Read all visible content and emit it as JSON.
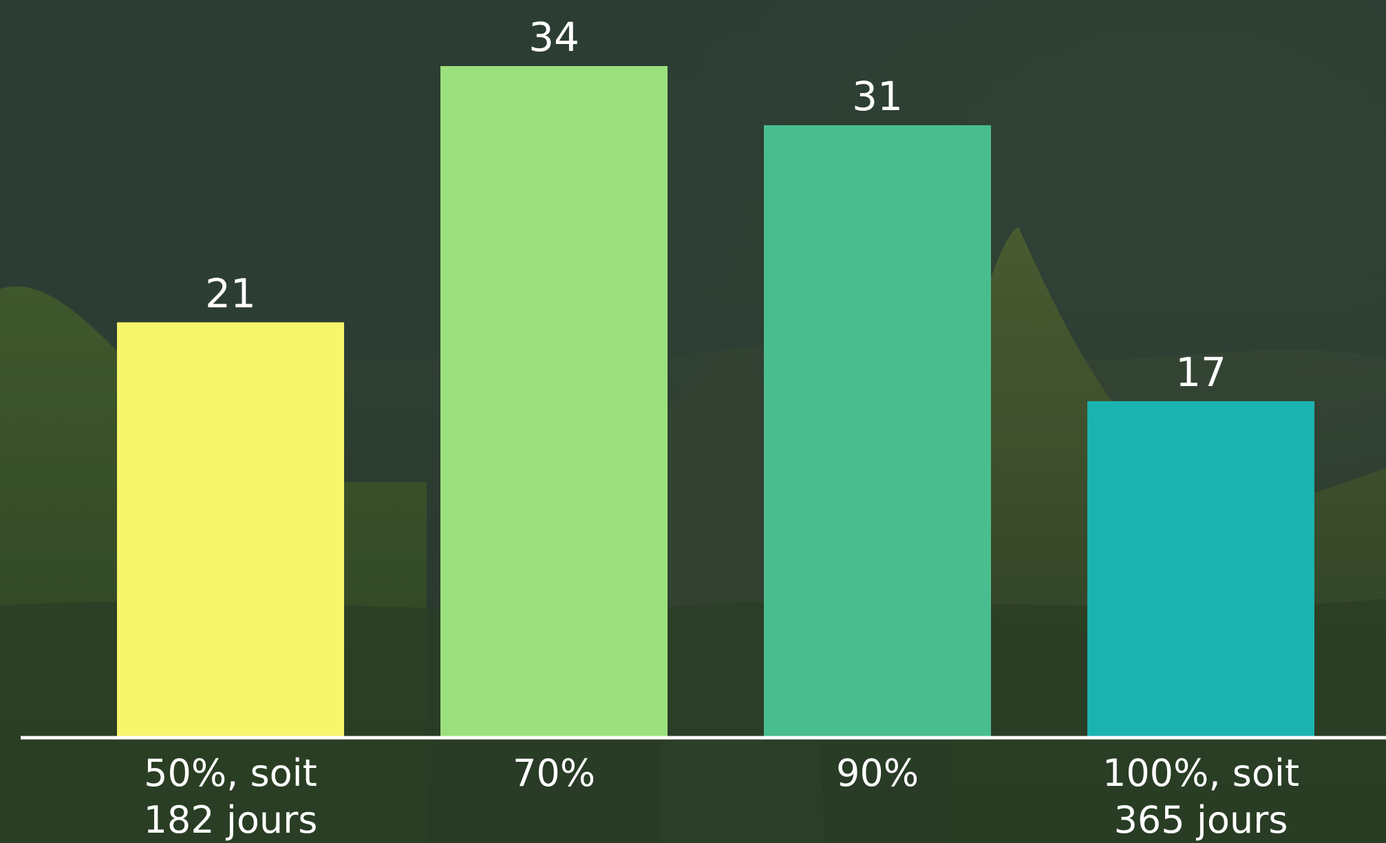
{
  "chart_data": {
    "type": "bar",
    "categories": [
      [
        "50%, soit",
        "182 jours"
      ],
      [
        "70%"
      ],
      [
        "90%"
      ],
      [
        "100%, soit",
        "365 jours"
      ]
    ],
    "values": [
      21,
      34,
      31,
      17
    ],
    "colors": [
      "#f7f56c",
      "#9ce07e",
      "#4abd8e",
      "#1bb3af"
    ],
    "ylim": [
      0,
      34
    ],
    "grid": false,
    "legend": "none",
    "axis_color": "#ffffff",
    "label_color": "#ffffff"
  }
}
